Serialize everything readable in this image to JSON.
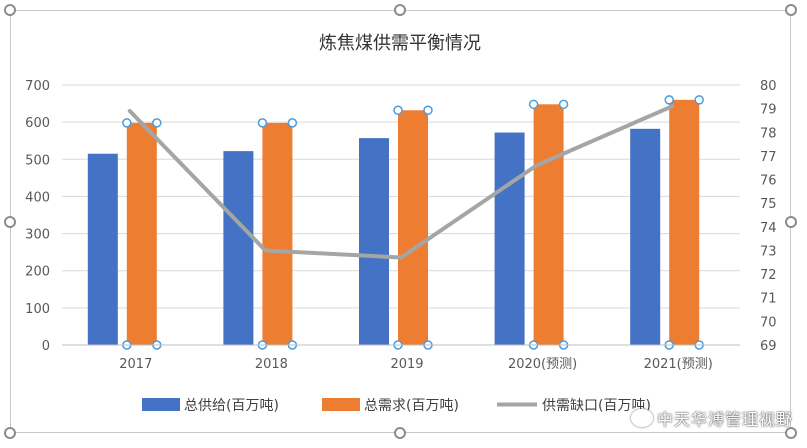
{
  "chart_data": {
    "type": "bar",
    "title": "炼焦煤供需平衡情况",
    "categories": [
      "2017",
      "2018",
      "2019",
      "2020(预测)",
      "2021(预测)"
    ],
    "series": [
      {
        "name": "总供给(百万吨)",
        "type": "bar",
        "axis": "left",
        "color": "#4472C4",
        "values": [
          515,
          522,
          557,
          572,
          582
        ]
      },
      {
        "name": "总需求(百万吨)",
        "type": "bar",
        "axis": "left",
        "color": "#ED7D31",
        "values": [
          598,
          598,
          632,
          648,
          660
        ]
      },
      {
        "name": "供需缺口(百万吨)",
        "type": "line",
        "axis": "right",
        "color": "#A5A5A5",
        "values": [
          78.9,
          73.0,
          72.7,
          76.6,
          79.1
        ]
      }
    ],
    "ylim": [
      0,
      700
    ],
    "yticks": [
      0,
      100,
      200,
      300,
      400,
      500,
      600,
      700
    ],
    "y2lim": [
      69,
      80
    ],
    "y2ticks": [
      69,
      70,
      71,
      72,
      73,
      74,
      75,
      76,
      77,
      78,
      79,
      80
    ],
    "grid": true,
    "legend": "bottom"
  },
  "watermark": "中天华溥管理视野"
}
